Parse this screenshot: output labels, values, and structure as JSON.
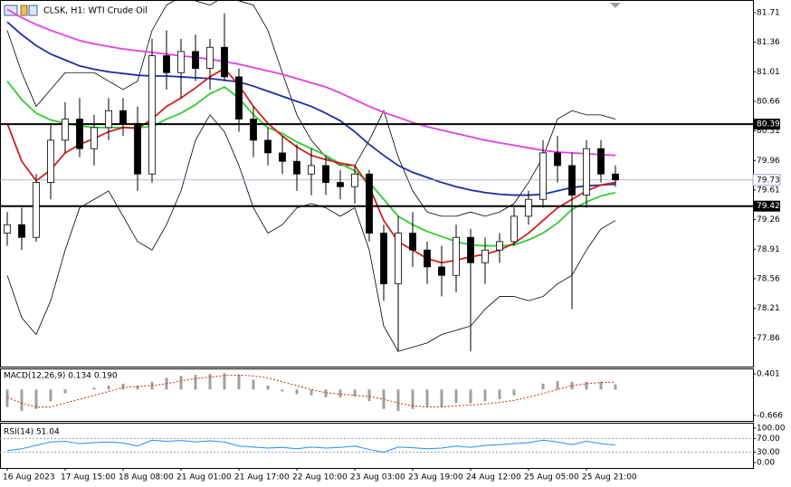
{
  "chart_data": [
    {
      "type": "candlestick",
      "title": "CLSK, H1:  WTI Crude Oil",
      "categories": [
        "16 Aug 2023",
        null,
        null,
        null,
        "17 Aug 15:00",
        null,
        null,
        null,
        "18 Aug 08:00",
        null,
        null,
        null,
        "21 Aug 01:00",
        null,
        null,
        null,
        "21 Aug 17:00",
        null,
        null,
        null,
        "22 Aug 10:00",
        null,
        null,
        null,
        "23 Aug 03:00",
        null,
        null,
        null,
        "23 Aug 19:00",
        null,
        null,
        null,
        "24 Aug 12:00",
        null,
        null,
        null,
        "25 Aug 05:00",
        null,
        null,
        null,
        "25 Aug 21:00",
        null,
        null
      ],
      "open": [
        79.1,
        79.2,
        79.05,
        79.7,
        80.2,
        80.45,
        80.1,
        80.35,
        80.55,
        80.4,
        79.8,
        81.2,
        81.0,
        81.25,
        81.05,
        81.3,
        80.95,
        80.45,
        80.2,
        80.05,
        79.95,
        79.8,
        79.9,
        79.7,
        79.65,
        79.8,
        79.1,
        78.5,
        79.1,
        78.9,
        78.7,
        78.6,
        79.05,
        78.75,
        78.9,
        79.0,
        79.3,
        79.5,
        80.05,
        79.9,
        79.55,
        80.1,
        79.8
      ],
      "high": [
        79.35,
        79.4,
        79.8,
        80.4,
        80.65,
        80.7,
        80.5,
        80.7,
        80.7,
        80.6,
        81.4,
        81.5,
        81.4,
        81.45,
        81.4,
        81.7,
        81.05,
        80.6,
        80.35,
        80.25,
        80.15,
        80.1,
        80.0,
        79.85,
        79.9,
        79.85,
        79.2,
        79.3,
        79.35,
        79.0,
        78.95,
        79.2,
        79.15,
        79.05,
        79.1,
        79.4,
        79.6,
        80.2,
        80.25,
        80.05,
        80.2,
        80.2,
        79.9
      ],
      "low": [
        78.95,
        78.9,
        79.0,
        79.5,
        80.05,
        80.0,
        79.9,
        80.2,
        80.25,
        79.6,
        79.7,
        80.8,
        80.7,
        80.9,
        80.8,
        80.9,
        80.3,
        80.0,
        79.9,
        79.8,
        79.6,
        79.55,
        79.55,
        79.5,
        79.45,
        79.0,
        78.3,
        77.7,
        78.7,
        78.5,
        78.35,
        78.4,
        77.7,
        78.5,
        78.75,
        78.95,
        79.2,
        79.4,
        79.7,
        78.2,
        79.4,
        79.7,
        79.65
      ],
      "close": [
        79.2,
        79.05,
        79.7,
        80.2,
        80.45,
        80.1,
        80.35,
        80.55,
        80.4,
        79.8,
        81.2,
        81.0,
        81.25,
        81.05,
        81.3,
        80.95,
        80.45,
        80.2,
        80.05,
        79.95,
        79.8,
        79.9,
        79.7,
        79.65,
        79.8,
        79.1,
        78.5,
        79.1,
        78.9,
        78.7,
        78.6,
        79.05,
        78.75,
        78.9,
        79.0,
        79.3,
        79.5,
        80.05,
        79.9,
        79.55,
        80.1,
        79.8,
        79.73
      ],
      "lines": [
        {
          "color": "#000000",
          "values": [
            81.5,
            81.0,
            80.6,
            80.8,
            81.0,
            81.0,
            81.0,
            80.9,
            80.8,
            80.9,
            81.5,
            81.8,
            81.9,
            81.85,
            81.8,
            81.9,
            81.85,
            81.8,
            81.5,
            81.0,
            80.5,
            80.2,
            80.0,
            79.9,
            79.9,
            80.2,
            80.55,
            80.0,
            79.6,
            79.35,
            79.3,
            79.3,
            79.35,
            79.3,
            79.35,
            79.45,
            79.7,
            80.0,
            80.45,
            80.55,
            80.5,
            80.5,
            80.45
          ]
        },
        {
          "color": "#000000",
          "values": [
            78.6,
            78.1,
            77.9,
            78.3,
            78.9,
            79.4,
            79.5,
            79.6,
            79.3,
            79.0,
            78.9,
            79.2,
            79.6,
            80.2,
            80.5,
            80.3,
            79.9,
            79.4,
            79.1,
            79.2,
            79.4,
            79.45,
            79.4,
            79.3,
            79.4,
            78.9,
            78.0,
            77.7,
            77.75,
            77.8,
            77.9,
            77.95,
            78.0,
            78.2,
            78.35,
            78.35,
            78.3,
            78.35,
            78.5,
            78.6,
            78.9,
            79.15,
            79.25
          ]
        },
        {
          "color": "#e040e0",
          "values": [
            81.75,
            81.65,
            81.57,
            81.5,
            81.44,
            81.38,
            81.34,
            81.31,
            81.28,
            81.26,
            81.24,
            81.22,
            81.2,
            81.18,
            81.16,
            81.13,
            81.1,
            81.06,
            81.02,
            80.98,
            80.93,
            80.88,
            80.83,
            80.76,
            80.68,
            80.6,
            80.53,
            80.47,
            80.41,
            80.36,
            80.32,
            80.28,
            80.24,
            80.2,
            80.17,
            80.14,
            80.11,
            80.08,
            80.06,
            80.05,
            80.04,
            80.03,
            80.02
          ]
        },
        {
          "color": "#1f2fa0",
          "values": [
            81.6,
            81.45,
            81.32,
            81.22,
            81.15,
            81.08,
            81.04,
            81.01,
            80.99,
            80.97,
            80.96,
            80.96,
            80.95,
            80.94,
            80.93,
            80.91,
            80.89,
            80.84,
            80.78,
            80.72,
            80.66,
            80.6,
            80.52,
            80.43,
            80.3,
            80.15,
            80.02,
            79.9,
            79.82,
            79.76,
            79.7,
            79.65,
            79.61,
            79.58,
            79.56,
            79.55,
            79.55,
            79.56,
            79.6,
            79.64,
            79.66,
            79.67,
            79.68
          ]
        },
        {
          "color": "#32cd32",
          "values": [
            80.9,
            80.68,
            80.52,
            80.44,
            80.4,
            80.37,
            80.35,
            80.35,
            80.35,
            80.35,
            80.36,
            80.45,
            80.52,
            80.62,
            80.75,
            80.83,
            80.7,
            80.5,
            80.35,
            80.28,
            80.18,
            80.1,
            80.02,
            79.92,
            79.84,
            79.7,
            79.5,
            79.3,
            79.2,
            79.12,
            79.06,
            79.0,
            78.96,
            78.95,
            78.95,
            78.96,
            79.02,
            79.1,
            79.22,
            79.38,
            79.47,
            79.54,
            79.58
          ]
        },
        {
          "color": "#d02020",
          "values": [
            80.4,
            79.95,
            79.72,
            79.85,
            80.05,
            80.15,
            80.22,
            80.3,
            80.35,
            80.34,
            80.45,
            80.6,
            80.7,
            80.82,
            80.95,
            81.05,
            80.85,
            80.6,
            80.4,
            80.25,
            80.12,
            80.02,
            79.97,
            79.93,
            79.9,
            79.65,
            79.25,
            79.0,
            78.9,
            78.8,
            78.75,
            78.78,
            78.82,
            78.85,
            78.9,
            78.98,
            79.1,
            79.25,
            79.4,
            79.5,
            79.6,
            79.67,
            79.7
          ]
        }
      ],
      "hlines": [
        80.39,
        79.42
      ],
      "last_price": 79.73,
      "ylim": [
        77.52,
        81.86
      ],
      "yticks": [
        81.71,
        81.36,
        81.01,
        80.66,
        80.31,
        79.96,
        79.61,
        79.26,
        78.91,
        78.56,
        78.21,
        77.86
      ]
    },
    {
      "type": "macd",
      "title": "MACD(12,26,9) 0.134 0.190",
      "histogram": {
        "color": "#a0a0a0",
        "values": [
          -0.45,
          -0.55,
          -0.5,
          -0.3,
          -0.1,
          0.0,
          0.05,
          0.1,
          0.15,
          0.1,
          0.2,
          0.3,
          0.35,
          0.38,
          0.4,
          0.42,
          0.38,
          0.25,
          0.1,
          -0.05,
          -0.12,
          -0.15,
          -0.2,
          -0.2,
          -0.18,
          -0.3,
          -0.5,
          -0.55,
          -0.5,
          -0.45,
          -0.45,
          -0.35,
          -0.35,
          -0.3,
          -0.25,
          -0.15,
          0.0,
          0.15,
          0.22,
          0.2,
          0.2,
          0.2,
          0.134
        ]
      },
      "signal": {
        "color": "#d02020",
        "values": [
          -0.2,
          -0.35,
          -0.45,
          -0.45,
          -0.35,
          -0.25,
          -0.15,
          -0.05,
          0.05,
          0.08,
          0.1,
          0.15,
          0.22,
          0.28,
          0.32,
          0.36,
          0.37,
          0.35,
          0.3,
          0.2,
          0.1,
          0.0,
          -0.08,
          -0.12,
          -0.15,
          -0.18,
          -0.25,
          -0.35,
          -0.42,
          -0.45,
          -0.45,
          -0.42,
          -0.4,
          -0.37,
          -0.33,
          -0.28,
          -0.2,
          -0.1,
          0.0,
          0.1,
          0.15,
          0.18,
          0.19
        ]
      },
      "ylim": [
        -0.808,
        0.543
      ],
      "yticks": [
        0.401,
        -0.666
      ]
    },
    {
      "type": "rsi",
      "title": "RSI(14) 51.04",
      "color": "#1e90ff",
      "values": [
        35,
        40,
        50,
        60,
        62,
        55,
        58,
        60,
        57,
        48,
        65,
        62,
        64,
        60,
        63,
        60,
        48,
        45,
        42,
        44,
        40,
        45,
        42,
        44,
        48,
        38,
        30,
        45,
        43,
        40,
        42,
        48,
        44,
        50,
        52,
        55,
        58,
        65,
        60,
        52,
        62,
        55,
        51.04
      ],
      "ylim": [
        -15.8,
        115.8
      ],
      "yticks": [
        {
          "value": 100,
          "label": "100.00"
        },
        {
          "value": 70,
          "label": "70.00"
        },
        {
          "value": 30,
          "label": "30.00"
        },
        {
          "value": 0,
          "label": "0.00"
        }
      ],
      "levels": [
        70,
        30
      ]
    }
  ]
}
